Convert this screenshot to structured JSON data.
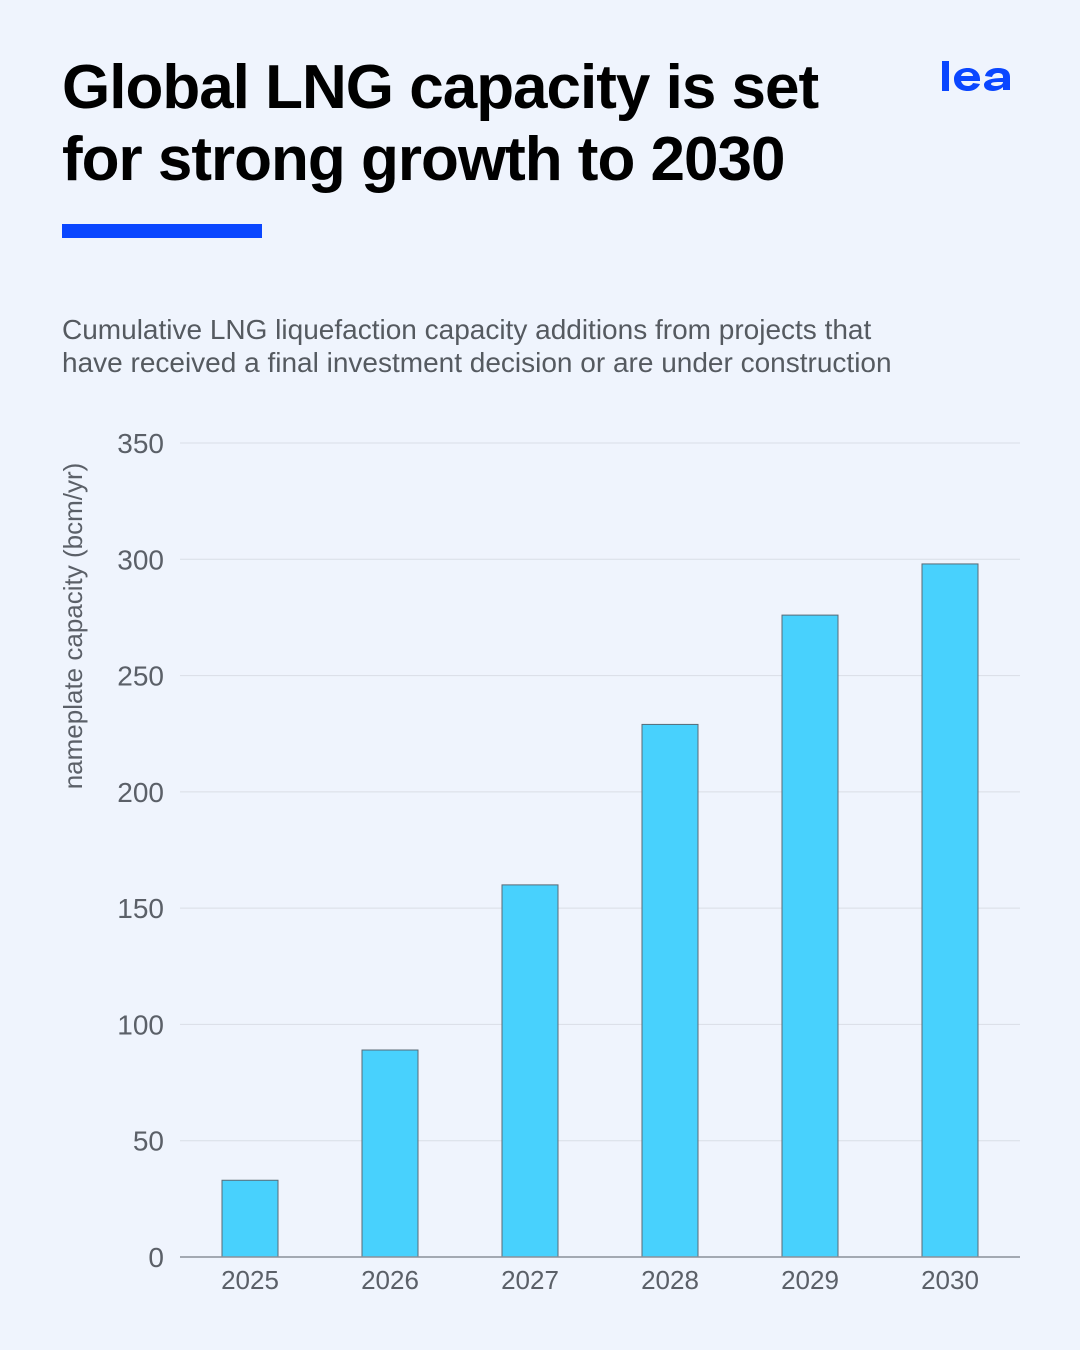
{
  "header": {
    "title_line1": "Global LNG capacity is set",
    "title_line2": "for strong growth to 2030",
    "logo_text": "iea",
    "accent_color": "#0a46ff"
  },
  "subtitle": {
    "line1": "Cumulative LNG liquefaction capacity additions from projects that",
    "line2": "have received a final investment decision or are under construction"
  },
  "chart_data": {
    "type": "bar",
    "title": "",
    "xlabel": "",
    "ylabel": "nameplate capacity (bcm/yr)",
    "categories": [
      "2025",
      "2026",
      "2027",
      "2028",
      "2029",
      "2030"
    ],
    "values": [
      33,
      89,
      160,
      229,
      276,
      298
    ],
    "ylim": [
      0,
      350
    ],
    "yticks": [
      0,
      50,
      100,
      150,
      200,
      250,
      300,
      350
    ],
    "grid": true,
    "bar_color": "#48d1fd",
    "bar_edge_color": "#5a6a75",
    "legend": "none"
  }
}
